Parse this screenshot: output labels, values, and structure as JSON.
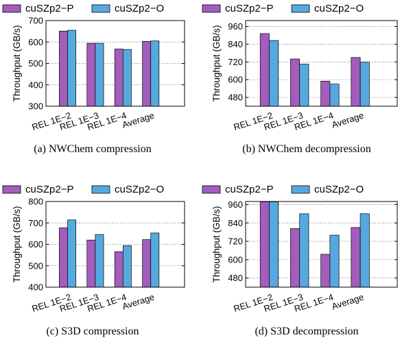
{
  "figure": {
    "legend": [
      {
        "name": "cuSZp2−P",
        "color": "#a35dbd"
      },
      {
        "name": "cuSZp2−O",
        "color": "#56a9df"
      }
    ]
  },
  "chart_data": [
    {
      "type": "bar",
      "caption": "(a) NWChem compression",
      "ylabel": "Throughput (GB/s)",
      "ylim": [
        300,
        700
      ],
      "yticks": [
        300,
        400,
        500,
        600,
        700
      ],
      "grid": true,
      "categories": [
        "REL 1E−2",
        "REL 1E−3",
        "REL 1E−4",
        "Average"
      ],
      "series": [
        {
          "name": "cuSZp2−P",
          "values": [
            651,
            594,
            567,
            603
          ]
        },
        {
          "name": "cuSZp2−O",
          "values": [
            655,
            594,
            565,
            605
          ]
        }
      ]
    },
    {
      "type": "bar",
      "caption": "(b) NWChem decompression",
      "ylabel": "Throughput (GB/s)",
      "ylim": [
        420,
        1000
      ],
      "yticks": [
        480,
        600,
        720,
        840,
        960
      ],
      "grid": true,
      "categories": [
        "REL 1E−2",
        "REL 1E−3",
        "REL 1E−4",
        "Average"
      ],
      "series": [
        {
          "name": "cuSZp2−P",
          "values": [
            912,
            740,
            590,
            750
          ]
        },
        {
          "name": "cuSZp2−O",
          "values": [
            865,
            705,
            570,
            718
          ]
        }
      ]
    },
    {
      "type": "bar",
      "caption": "(c) S3D compression",
      "ylabel": "Throughput (GB/s)",
      "ylim": [
        400,
        800
      ],
      "yticks": [
        400,
        500,
        600,
        700,
        800
      ],
      "grid": true,
      "categories": [
        "REL 1E−2",
        "REL 1E−3",
        "REL 1E−4",
        "Average"
      ],
      "series": [
        {
          "name": "cuSZp2−P",
          "values": [
            677,
            620,
            566,
            622
          ]
        },
        {
          "name": "cuSZp2−O",
          "values": [
            714,
            646,
            594,
            653
          ]
        }
      ]
    },
    {
      "type": "bar",
      "caption": "(d) S3D decompression",
      "ylabel": "Throughput (GB/s)",
      "ylim": [
        420,
        980
      ],
      "yticks": [
        480,
        600,
        720,
        840,
        960
      ],
      "grid": true,
      "categories": [
        "REL 1E−2",
        "REL 1E−3",
        "REL 1E−4",
        "Average"
      ],
      "series": [
        {
          "name": "cuSZp2−P",
          "values": [
            978,
            803,
            635,
            810
          ]
        },
        {
          "name": "cuSZp2−O",
          "values": [
            978,
            900,
            760,
            900
          ]
        }
      ]
    }
  ]
}
